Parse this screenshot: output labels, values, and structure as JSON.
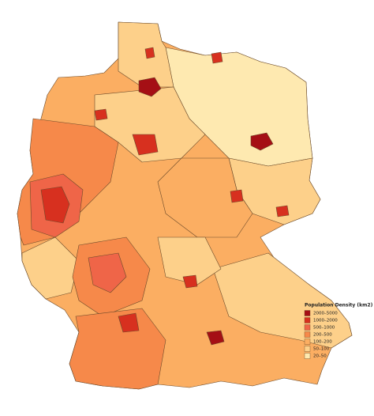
{
  "legend": {
    "title": "Population Density (km2)",
    "items": [
      {
        "label": "2000–5000",
        "color": "#a50f15"
      },
      {
        "label": "1000–2000",
        "color": "#d7301f"
      },
      {
        "label": "500–1000",
        "color": "#ef6548"
      },
      {
        "label": "200–500",
        "color": "#f6894a"
      },
      {
        "label": "100–200",
        "color": "#fbae62"
      },
      {
        "label": "50–100",
        "color": "#fdd08a"
      },
      {
        "label": "20–50",
        "color": "#fee9b0"
      }
    ]
  }
}
